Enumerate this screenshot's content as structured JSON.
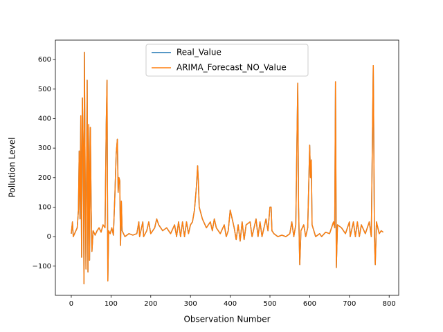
{
  "chart_data": {
    "type": "line",
    "x_label": "Observation Number",
    "y_label": "Pollution Level",
    "x": [
      0,
      3,
      5,
      10,
      15,
      18,
      20,
      22,
      24,
      26,
      28,
      30,
      32,
      33,
      35,
      37,
      40,
      42,
      44,
      46,
      48,
      50,
      52,
      55,
      60,
      65,
      70,
      75,
      80,
      85,
      88,
      90,
      92,
      94,
      98,
      102,
      106,
      110,
      113,
      116,
      118,
      120,
      122,
      124,
      126,
      128,
      135,
      145,
      155,
      165,
      170,
      172,
      180,
      182,
      190,
      195,
      200,
      210,
      215,
      220,
      230,
      240,
      250,
      260,
      265,
      270,
      275,
      280,
      285,
      290,
      295,
      300,
      305,
      310,
      315,
      318,
      320,
      322,
      330,
      340,
      350,
      355,
      360,
      365,
      375,
      385,
      390,
      395,
      400,
      405,
      410,
      415,
      420,
      425,
      430,
      435,
      440,
      450,
      455,
      460,
      465,
      470,
      475,
      480,
      485,
      490,
      495,
      500,
      503,
      505,
      510,
      520,
      530,
      540,
      550,
      555,
      560,
      565,
      570,
      572,
      575,
      578,
      585,
      590,
      595,
      600,
      602,
      604,
      606,
      615,
      625,
      630,
      640,
      650,
      660,
      663,
      665,
      667,
      670,
      680,
      690,
      700,
      702,
      710,
      715,
      720,
      725,
      730,
      740,
      750,
      755,
      760,
      763,
      765,
      768,
      775,
      780,
      785
    ],
    "series": [
      {
        "name": "Real_Value",
        "color": "#1f77b4",
        "values": [
          10,
          50,
          0,
          15,
          30,
          90,
          290,
          60,
          410,
          -70,
          470,
          300,
          -160,
          625,
          200,
          -110,
          530,
          -120,
          380,
          -80,
          370,
          100,
          -50,
          20,
          5,
          20,
          30,
          15,
          40,
          30,
          380,
          530,
          -150,
          20,
          10,
          30,
          5,
          150,
          280,
          330,
          150,
          200,
          190,
          -30,
          120,
          20,
          0,
          10,
          5,
          10,
          50,
          0,
          50,
          0,
          20,
          50,
          10,
          30,
          60,
          40,
          20,
          30,
          10,
          40,
          0,
          50,
          0,
          50,
          0,
          50,
          10,
          40,
          50,
          90,
          170,
          240,
          180,
          100,
          60,
          30,
          50,
          20,
          60,
          30,
          10,
          40,
          0,
          20,
          90,
          60,
          30,
          -10,
          40,
          -15,
          50,
          -10,
          40,
          50,
          0,
          30,
          60,
          0,
          50,
          0,
          30,
          60,
          20,
          100,
          100,
          20,
          10,
          0,
          5,
          0,
          10,
          50,
          0,
          40,
          520,
          100,
          -95,
          20,
          40,
          0,
          30,
          310,
          200,
          260,
          40,
          0,
          10,
          0,
          15,
          10,
          50,
          30,
          525,
          -105,
          40,
          30,
          10,
          50,
          0,
          50,
          0,
          50,
          0,
          40,
          10,
          50,
          0,
          580,
          0,
          -95,
          50,
          10,
          20,
          15
        ]
      },
      {
        "name": "ARIMA_Forecast_NO_Value",
        "color": "#ff7f0e",
        "values": [
          10,
          50,
          0,
          15,
          30,
          90,
          290,
          60,
          410,
          -70,
          470,
          300,
          -160,
          625,
          200,
          -110,
          530,
          -120,
          380,
          -80,
          370,
          100,
          -50,
          20,
          5,
          20,
          30,
          15,
          40,
          30,
          380,
          530,
          -150,
          20,
          10,
          30,
          5,
          150,
          280,
          330,
          150,
          200,
          190,
          -30,
          120,
          20,
          0,
          10,
          5,
          10,
          50,
          0,
          50,
          0,
          20,
          50,
          10,
          30,
          60,
          40,
          20,
          30,
          10,
          40,
          0,
          50,
          0,
          50,
          0,
          50,
          10,
          40,
          50,
          90,
          170,
          240,
          180,
          100,
          60,
          30,
          50,
          20,
          60,
          30,
          10,
          40,
          0,
          20,
          90,
          60,
          30,
          -10,
          40,
          -15,
          50,
          -10,
          40,
          50,
          0,
          30,
          60,
          0,
          50,
          0,
          30,
          60,
          20,
          100,
          100,
          20,
          10,
          0,
          5,
          0,
          10,
          50,
          0,
          40,
          520,
          100,
          -95,
          20,
          40,
          0,
          30,
          310,
          200,
          260,
          40,
          0,
          10,
          0,
          15,
          10,
          50,
          30,
          525,
          -105,
          40,
          30,
          10,
          50,
          0,
          50,
          0,
          50,
          0,
          40,
          10,
          50,
          0,
          580,
          0,
          -95,
          50,
          10,
          20,
          15
        ]
      }
    ],
    "xlim": [
      -40,
      824
    ],
    "ylim": [
      -199,
      666
    ],
    "xticks": [
      0,
      100,
      200,
      300,
      400,
      500,
      600,
      700,
      800
    ],
    "yticks": [
      {
        "value": -100,
        "label": "−100"
      },
      0,
      100,
      200,
      300,
      400,
      500,
      600
    ],
    "legend": "upper center"
  }
}
